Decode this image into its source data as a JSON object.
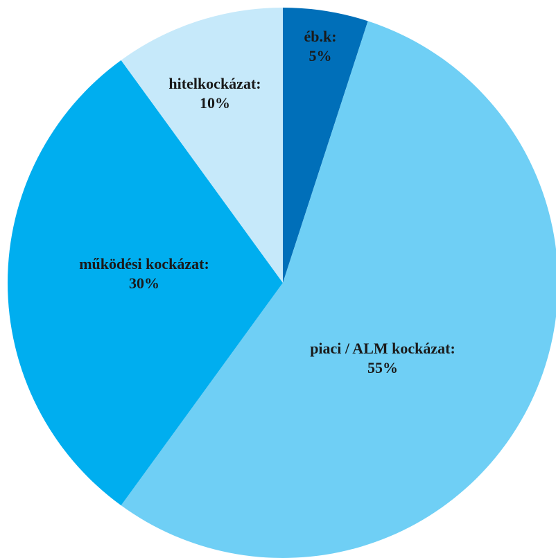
{
  "chart_data": {
    "type": "pie",
    "start_angle": "12 o'clock",
    "direction": "clockwise",
    "slices": [
      {
        "label": "éb.k:",
        "value": 5,
        "value_label": "5%",
        "color": "#006FB9"
      },
      {
        "label": "piaci / ALM kockázat:",
        "value": 55,
        "value_label": "55%",
        "color": "#6FCFF5"
      },
      {
        "label": "működési kockázat:",
        "value": 30,
        "value_label": "30%",
        "color": "#00AEEF"
      },
      {
        "label": "hitelkockázat:",
        "value": 10,
        "value_label": "10%",
        "color": "#C6E9FA"
      }
    ]
  }
}
